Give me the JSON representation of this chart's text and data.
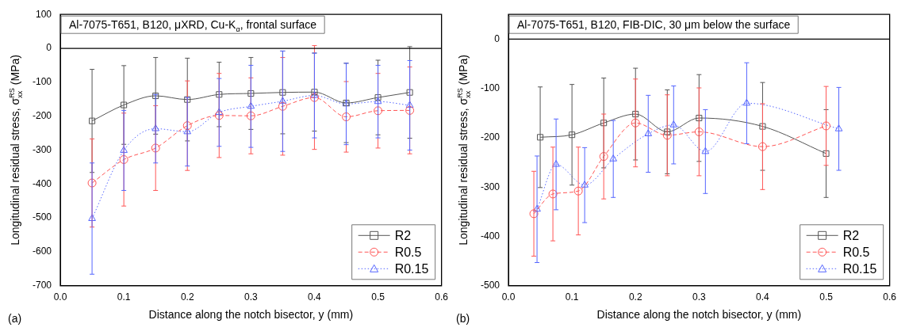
{
  "chart_data": [
    {
      "type": "line",
      "title": "Al-7075-T651, B120, μXRD, Cu-K$_{α}$, frontal surface",
      "xlabel": "Distance along the notch bisector, y (mm)",
      "ylabel": "Longitudinal residual stress, σ$_{xx}$$^{RS}$ (MPa)",
      "annotations": [
        "(a)"
      ],
      "xlim": [
        0,
        0.6
      ],
      "xticks": [
        {
          "value": 0,
          "label": "0.0"
        },
        0.1,
        0.2,
        0.3,
        0.4,
        0.5,
        0.6
      ],
      "ylim": [
        -700,
        100
      ],
      "yticks": [
        -700,
        -600,
        -500,
        -400,
        -300,
        -200,
        -100,
        0,
        100
      ],
      "grid": false,
      "legend": "bottom right",
      "ref_lines": [
        {
          "axis": "y",
          "value": 0,
          "color": "#000000"
        }
      ],
      "series": [
        {
          "name": "R2",
          "color": "#555555",
          "marker": "square",
          "line_style": "solid",
          "x": [
            0.05,
            0.1,
            0.15,
            0.2,
            0.25,
            0.3,
            0.35,
            0.4,
            0.45,
            0.5,
            0.55
          ],
          "values": [
            -214,
            -167,
            -140,
            -151,
            -136,
            -133,
            -130,
            -129,
            -161,
            -145,
            -130
          ],
          "errors": [
            152,
            116,
            113,
            122,
            95,
            106,
            122,
            115,
            117,
            110,
            135
          ]
        },
        {
          "name": "R0.5",
          "color": "#ff5555",
          "marker": "circle",
          "line_style": "dashed",
          "x": [
            0.05,
            0.1,
            0.15,
            0.2,
            0.25,
            0.3,
            0.35,
            0.4,
            0.45,
            0.5,
            0.55
          ],
          "values": [
            -397,
            -328,
            -294,
            -228,
            -198,
            -199,
            -171,
            -145,
            -202,
            -184,
            -183
          ],
          "errors": [
            130,
            137,
            125,
            132,
            124,
            112,
            144,
            153,
            104,
            110,
            128
          ]
        },
        {
          "name": "R0.15",
          "color": "#5566ff",
          "marker": "triangle",
          "line_style": "dotted",
          "x": [
            0.05,
            0.1,
            0.15,
            0.2,
            0.25,
            0.3,
            0.35,
            0.4,
            0.45,
            0.5,
            0.55
          ],
          "values": [
            -502,
            -301,
            -237,
            -246,
            -189,
            -171,
            -156,
            -139,
            -164,
            -157,
            -168
          ],
          "errors": [
            164,
            118,
            101,
            101,
            100,
            121,
            148,
            125,
            120,
            107,
            132
          ]
        }
      ]
    },
    {
      "type": "line",
      "title": "Al-7075-T651, B120, FIB-DIC, 30 μm below the surface",
      "xlabel": "Distance along the notch bisector, y (mm)",
      "ylabel": "Longitudinal residual stress, σ$_{xx}$$^{RS}$ (MPa)",
      "annotations": [
        "(b)"
      ],
      "xlim": [
        0,
        0.6
      ],
      "xticks": [
        {
          "value": 0,
          "label": "0.0"
        },
        0.1,
        0.2,
        0.3,
        0.4,
        0.5,
        0.6
      ],
      "ylim": [
        -500,
        50
      ],
      "yticks": [
        -500,
        -400,
        -300,
        -200,
        -100,
        0
      ],
      "grid": false,
      "legend": "bottom right",
      "ref_lines": [
        {
          "axis": "y",
          "value": 0,
          "color": "#000000"
        }
      ],
      "series": [
        {
          "name": "R2",
          "color": "#555555",
          "marker": "square",
          "line_style": "solid",
          "x": [
            0.05,
            0.1,
            0.15,
            0.2,
            0.25,
            0.3,
            0.4,
            0.5
          ],
          "values": [
            -199,
            -194,
            -170,
            -152,
            -188,
            -160,
            -177,
            -232
          ],
          "errors": [
            102,
            102,
            91,
            93,
            85,
            88,
            89,
            89
          ]
        },
        {
          "name": "R0.5",
          "color": "#ff5555",
          "marker": "circle",
          "line_style": "dashed",
          "x": [
            0.04,
            0.07,
            0.11,
            0.15,
            0.2,
            0.25,
            0.3,
            0.4,
            0.5
          ],
          "values": [
            -354,
            -314,
            -308,
            -238,
            -170,
            -195,
            -188,
            -218,
            -176
          ],
          "errors": [
            86,
            95,
            89,
            86,
            89,
            82,
            89,
            87,
            80
          ]
        },
        {
          "name": "R0.15",
          "color": "#5566ff",
          "marker": "triangle",
          "line_style": "dotted",
          "x": [
            0.045,
            0.075,
            0.12,
            0.165,
            0.22,
            0.26,
            0.31,
            0.375,
            0.52
          ],
          "values": [
            -345,
            -254,
            -296,
            -243,
            -192,
            -174,
            -228,
            -130,
            -182
          ],
          "errors": [
            108,
            92,
            76,
            78,
            78,
            79,
            85,
            82,
            84
          ]
        }
      ]
    }
  ]
}
